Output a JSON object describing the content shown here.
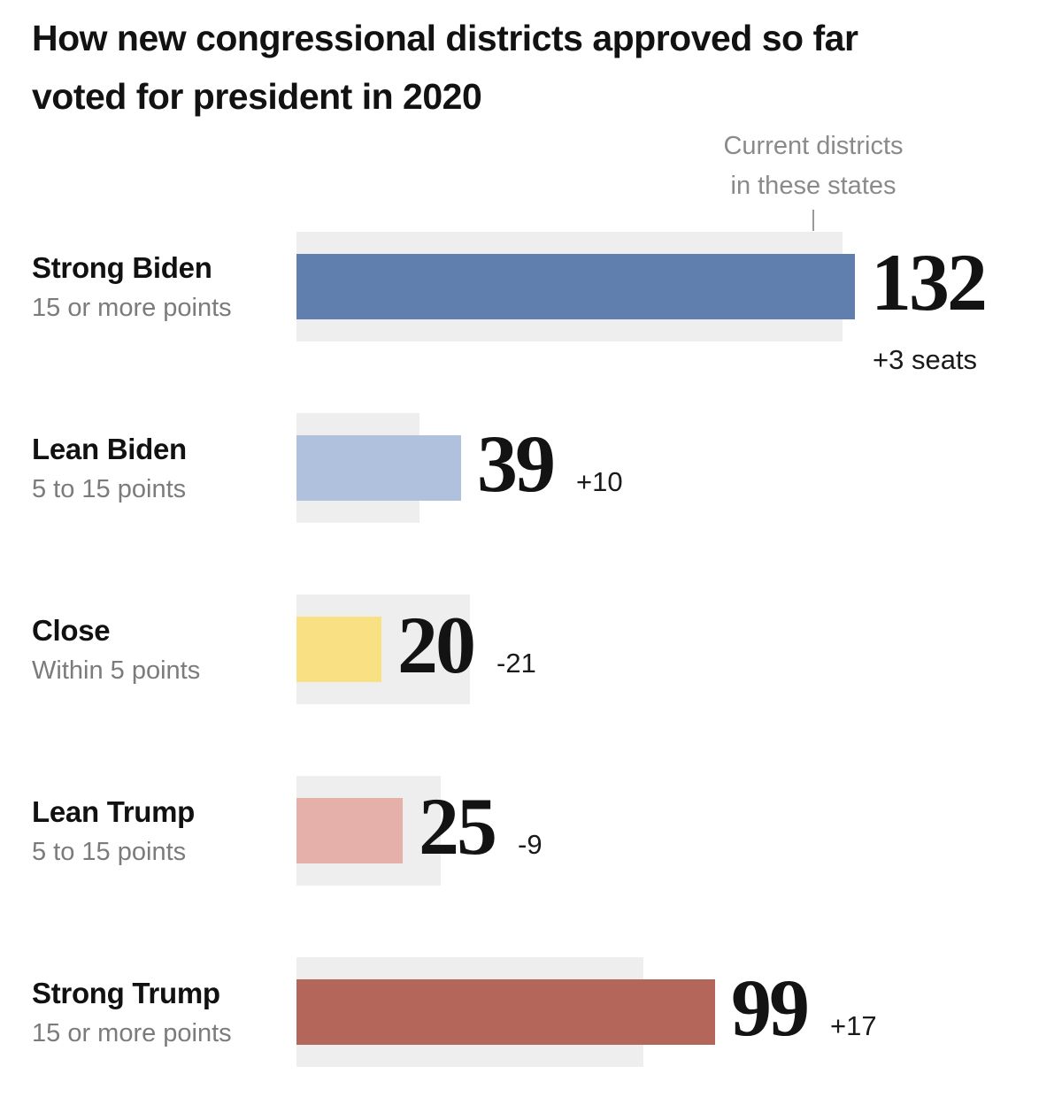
{
  "page": {
    "background": "#ffffff"
  },
  "chart_data": {
    "type": "bar",
    "orientation": "horizontal",
    "title": "How new congressional districts approved so far\nvoted for president in 2020",
    "annotation_label": "Current districts\nin these states",
    "grid": false,
    "x_axis": {
      "unit": "seats",
      "range": [
        0,
        132
      ],
      "ticks_visible": false
    },
    "rows": [
      {
        "category": "Strong Biden",
        "subtitle": "15 or more points",
        "value": 132,
        "current_districts": 129,
        "delta_label": "+3 seats",
        "color": "#617fae"
      },
      {
        "category": "Lean Biden",
        "subtitle": "5 to 15 points",
        "value": 39,
        "current_districts": 29,
        "delta_label": "+10",
        "color": "#afc1dc"
      },
      {
        "category": "Close",
        "subtitle": "Within 5 points",
        "value": 20,
        "current_districts": 41,
        "delta_label": "-21",
        "color": "#f9e083"
      },
      {
        "category": "Lean Trump",
        "subtitle": "5 to 15 points",
        "value": 25,
        "current_districts": 34,
        "delta_label": "-9",
        "color": "#e6b0aa"
      },
      {
        "category": "Strong Trump",
        "subtitle": "15 or more points",
        "value": 99,
        "current_districts": 82,
        "delta_label": "+17",
        "color": "#b5665a"
      }
    ]
  },
  "colors": {
    "current_bar_fill": "#eeeeee",
    "title_text": "#121212",
    "category_text": "#111111",
    "subtitle_text": "#7b7b7b",
    "annotation_text": "#8a8a8a",
    "number_text": "#131313",
    "delta_text": "#1a1a1a",
    "tick": "#999999"
  }
}
